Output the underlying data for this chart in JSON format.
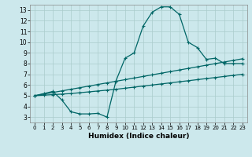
{
  "xlabel": "Humidex (Indice chaleur)",
  "bg_color": "#cce8ec",
  "grid_color": "#aacccc",
  "line_color": "#006666",
  "xlim": [
    -0.5,
    23.5
  ],
  "ylim": [
    2.5,
    13.5
  ],
  "xticks": [
    0,
    1,
    2,
    3,
    4,
    5,
    6,
    7,
    8,
    9,
    10,
    11,
    12,
    13,
    14,
    15,
    16,
    17,
    18,
    19,
    20,
    21,
    22,
    23
  ],
  "yticks": [
    3,
    4,
    5,
    6,
    7,
    8,
    9,
    10,
    11,
    12,
    13
  ],
  "line1_x": [
    0,
    1,
    2,
    3,
    4,
    5,
    6,
    7,
    8,
    9,
    10,
    11,
    12,
    13,
    14,
    15,
    16,
    17,
    18,
    19,
    20,
    21,
    22,
    23
  ],
  "line1_y": [
    5.0,
    5.15,
    5.3,
    5.45,
    5.6,
    5.75,
    5.9,
    6.05,
    6.2,
    6.35,
    6.5,
    6.65,
    6.8,
    6.95,
    7.1,
    7.25,
    7.4,
    7.55,
    7.7,
    7.85,
    8.0,
    8.15,
    8.3,
    8.45
  ],
  "line2_x": [
    0,
    1,
    2,
    3,
    4,
    5,
    6,
    7,
    8,
    9,
    10,
    11,
    12,
    13,
    14,
    15,
    16,
    17,
    18,
    19,
    20,
    21,
    22,
    23
  ],
  "line2_y": [
    5.0,
    5.05,
    5.1,
    5.15,
    5.2,
    5.28,
    5.36,
    5.44,
    5.52,
    5.6,
    5.7,
    5.8,
    5.9,
    6.0,
    6.1,
    6.2,
    6.3,
    6.4,
    6.5,
    6.6,
    6.7,
    6.8,
    6.9,
    7.0
  ],
  "line3_x": [
    0,
    1,
    2,
    3,
    4,
    5,
    6,
    7,
    8,
    9,
    10,
    11,
    12,
    13,
    14,
    15,
    16,
    17,
    18,
    19,
    20,
    21,
    22,
    23
  ],
  "line3_y": [
    5.0,
    5.2,
    5.4,
    4.6,
    3.5,
    3.3,
    3.3,
    3.35,
    3.0,
    6.4,
    8.5,
    9.0,
    11.5,
    12.8,
    13.3,
    13.3,
    12.6,
    10.0,
    9.5,
    8.4,
    8.5,
    8.0,
    8.0,
    8.0
  ]
}
